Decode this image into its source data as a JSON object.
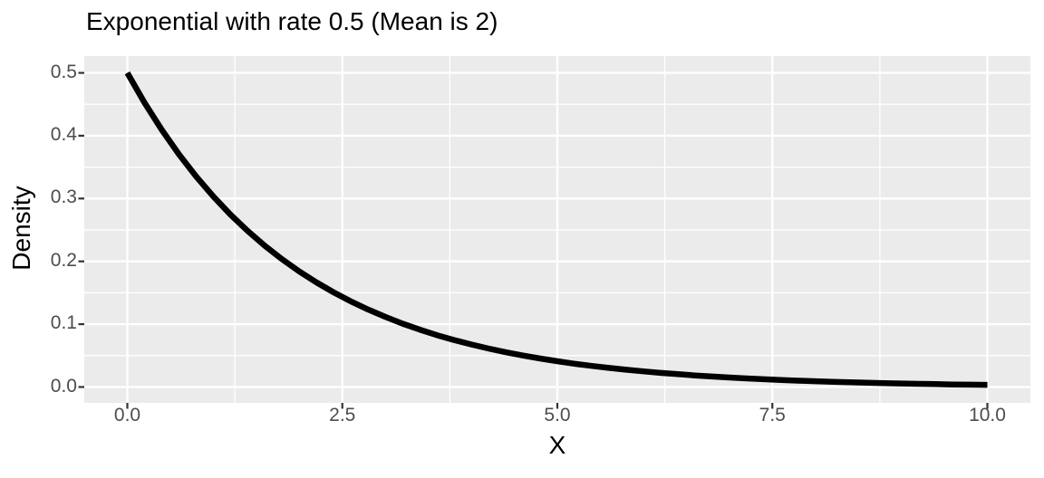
{
  "chart_data": {
    "type": "line",
    "title": "Exponential with rate 0.5 (Mean is 2)",
    "xlabel": "X",
    "ylabel": "Density",
    "legend": "none",
    "grid": "on",
    "axes": {
      "x": {
        "range": [
          -0.5,
          10.5
        ],
        "ticks": [
          0,
          2.5,
          5,
          7.5,
          10
        ],
        "tick_labels": [
          "0.0",
          "2.5",
          "5.0",
          "7.5",
          "10.0"
        ],
        "minor_ticks": [
          1.25,
          3.75,
          6.25,
          8.75
        ]
      },
      "y": {
        "range": [
          -0.0263,
          0.5263
        ],
        "ticks": [
          0,
          0.1,
          0.2,
          0.3,
          0.4,
          0.5
        ],
        "tick_labels": [
          "0.0",
          "0.1",
          "0.2",
          "0.3",
          "0.4",
          "0.5"
        ],
        "minor_ticks": [
          0.05,
          0.15,
          0.25,
          0.35,
          0.45
        ]
      }
    },
    "series": [
      {
        "x": [
          0,
          0.2,
          0.4,
          0.6,
          0.8,
          1,
          1.2,
          1.4,
          1.6,
          1.8,
          2,
          2.2,
          2.4,
          2.6,
          2.8,
          3,
          3.2,
          3.4,
          3.6,
          3.8,
          4,
          4.2,
          4.4,
          4.6,
          4.8,
          5,
          5.2,
          5.4,
          5.6,
          5.8,
          6,
          6.2,
          6.4,
          6.6,
          6.8,
          7,
          7.2,
          7.4,
          7.6,
          7.8,
          8,
          8.2,
          8.4,
          8.6,
          8.8,
          9,
          9.2,
          9.4,
          9.6,
          9.8,
          10
        ],
        "y": [
          0.5,
          0.4524,
          0.4094,
          0.3704,
          0.3352,
          0.3033,
          0.2744,
          0.2483,
          0.2247,
          0.2033,
          0.1839,
          0.1664,
          0.1506,
          0.1363,
          0.1233,
          0.1116,
          0.1009,
          0.0913,
          0.0826,
          0.0748,
          0.0677,
          0.0612,
          0.0554,
          0.0501,
          0.0454,
          0.041,
          0.0371,
          0.0336,
          0.0304,
          0.0275,
          0.0249,
          0.0225,
          0.0204,
          0.0184,
          0.0167,
          0.0151,
          0.0137,
          0.0124,
          0.0112,
          0.0101,
          0.0092,
          0.0083,
          0.0075,
          0.0068,
          0.0061,
          0.0056,
          0.005,
          0.0046,
          0.0041,
          0.0037,
          0.0034
        ]
      }
    ],
    "colors": {
      "page_bg": "#FFFFFF",
      "panel_bg": "#EBEBEB",
      "grid": "#FFFFFF",
      "line": "#000000",
      "tick_mark": "#333333",
      "tick_label": "#4D4D4D",
      "text": "#000000"
    }
  }
}
